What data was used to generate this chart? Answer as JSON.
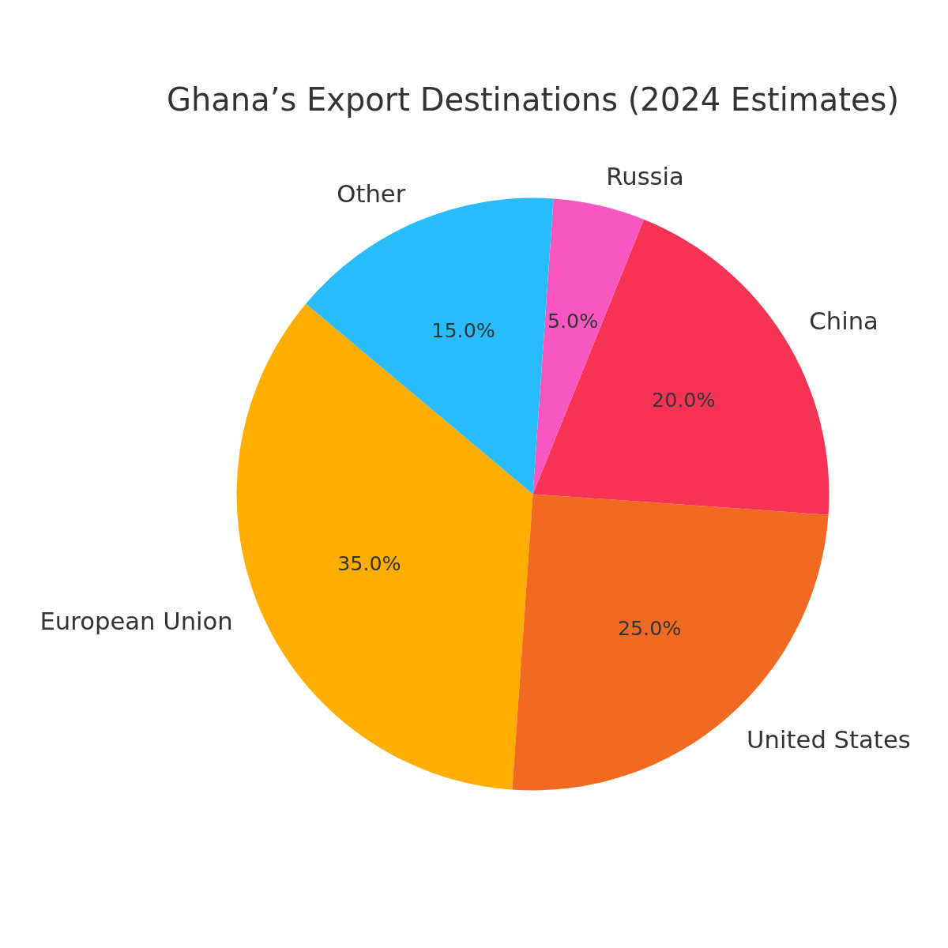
{
  "chart_data": {
    "type": "pie",
    "title": "Ghana’s Export Destinations (2024 Estimates)",
    "categories": [
      "European Union",
      "United States",
      "China",
      "Russia",
      "Other"
    ],
    "values": [
      35,
      25,
      20,
      5,
      15
    ],
    "colors": [
      "#ffae00",
      "#f26a21",
      "#f63355",
      "#f857c1",
      "#29bcfd"
    ],
    "value_labels": [
      "35.0%",
      "25.0%",
      "20.0%",
      "5.0%",
      "15.0%"
    ],
    "legend": false
  }
}
